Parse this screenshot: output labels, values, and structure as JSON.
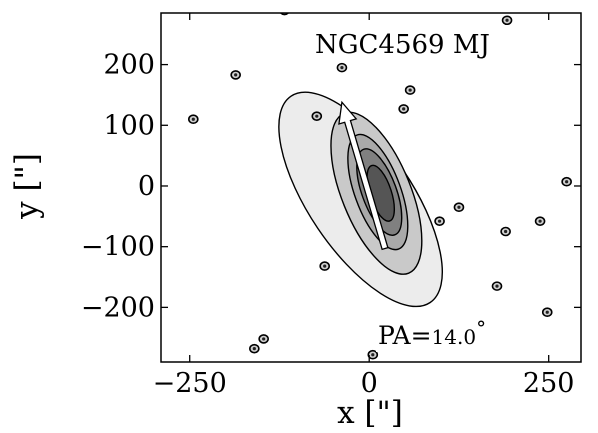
{
  "chart_data": {
    "type": "contour",
    "title": "NGC4569 MJ",
    "xlabel": "x [\"]",
    "ylabel": "y [\"]",
    "xlim": [
      -290,
      295
    ],
    "ylim": [
      -290,
      285
    ],
    "x_ticks": [
      -250,
      0,
      250
    ],
    "x_tick_labels": [
      "−250",
      "0",
      "250"
    ],
    "y_ticks": [
      -200,
      -100,
      0,
      100,
      200
    ],
    "y_tick_labels": [
      "−200",
      "−100",
      "0",
      "100",
      "200"
    ],
    "grid": false,
    "contour_levels": [
      {
        "level": 1,
        "fill": "#ececec",
        "center": [
          -12,
          -22
        ],
        "semi_major": 205,
        "semi_minor": 72,
        "position_angle_deg": 34
      },
      {
        "level": 2,
        "fill": "#c9c9c9",
        "center": [
          10,
          -12
        ],
        "semi_major": 142,
        "semi_minor": 48,
        "position_angle_deg": 22
      },
      {
        "level": 3,
        "fill": "#a9a9a9",
        "center": [
          12,
          -10
        ],
        "semi_major": 100,
        "semi_minor": 32,
        "position_angle_deg": 20
      },
      {
        "level": 4,
        "fill": "#808080",
        "center": [
          14,
          -10
        ],
        "semi_major": 75,
        "semi_minor": 24,
        "position_angle_deg": 20
      },
      {
        "level": 5,
        "fill": "#555555",
        "center": [
          16,
          -12
        ],
        "semi_major": 48,
        "semi_minor": 15,
        "position_angle_deg": 18
      }
    ],
    "point_sources": [
      {
        "x": -245,
        "y": 110
      },
      {
        "x": -118,
        "y": 289
      },
      {
        "x": -186,
        "y": 183
      },
      {
        "x": -147,
        "y": -252
      },
      {
        "x": -160,
        "y": -268
      },
      {
        "x": -38,
        "y": 195
      },
      {
        "x": -62,
        "y": -132
      },
      {
        "x": 5,
        "y": -278
      },
      {
        "x": 48,
        "y": 127
      },
      {
        "x": 57,
        "y": 158
      },
      {
        "x": 98,
        "y": -58
      },
      {
        "x": 125,
        "y": -35
      },
      {
        "x": 192,
        "y": 273
      },
      {
        "x": 190,
        "y": -75
      },
      {
        "x": 178,
        "y": -165
      },
      {
        "x": 275,
        "y": 7
      },
      {
        "x": 248,
        "y": -208
      },
      {
        "x": -73,
        "y": 115
      },
      {
        "x": 238,
        "y": -58
      }
    ],
    "position_angle": {
      "label": "PA=",
      "value": "14.0",
      "unit": "°",
      "arrow_from": [
        22,
        -103
      ],
      "arrow_to": [
        -38,
        138
      ]
    }
  }
}
